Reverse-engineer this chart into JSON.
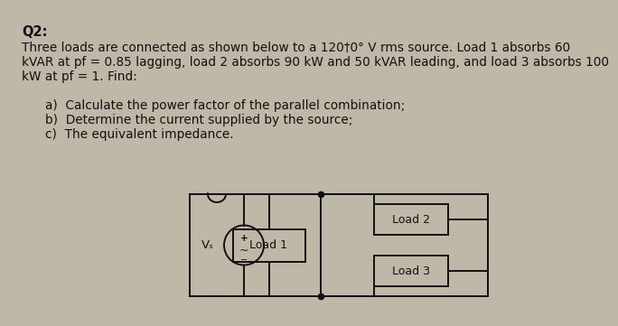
{
  "title": "Q2:",
  "line1": "Three loads are connected as shown below to a 120†0° V rms source. Load 1 absorbs 60",
  "line2": "kVAR at pf = 0.85 lagging, load 2 absorbs 90 kW and 50 kVAR leading, and load 3 absorbs 100",
  "line3": "kW at pf = 1. Find:",
  "item_a": "a)  Calculate the power factor of the parallel combination;",
  "item_b": "b)  Determine the current supplied by the source;",
  "item_c": "c)  The equivalent impedance.",
  "load1_label": "Load 1",
  "load2_label": "Load 2",
  "load3_label": "Load 3",
  "vs_label": "Vₛ",
  "bg_color": "#bfb8a8",
  "text_color": "#111111",
  "wire_color": "#111111",
  "title_fontsize": 10.5,
  "body_fontsize": 9.8,
  "item_fontsize": 9.8,
  "circuit_bg": "#c8c2b2"
}
